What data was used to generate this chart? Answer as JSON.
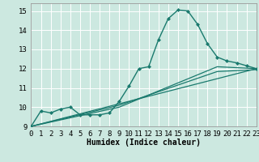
{
  "xlabel": "Humidex (Indice chaleur)",
  "xlim": [
    0,
    23
  ],
  "ylim": [
    9.0,
    15.4
  ],
  "yticks": [
    9,
    10,
    11,
    12,
    13,
    14,
    15
  ],
  "xticks": [
    0,
    1,
    2,
    3,
    4,
    5,
    6,
    7,
    8,
    9,
    10,
    11,
    12,
    13,
    14,
    15,
    16,
    17,
    18,
    19,
    20,
    21,
    22,
    23
  ],
  "bg_color": "#cce8e0",
  "grid_color": "#ffffff",
  "line_color": "#1a7a6e",
  "curves": [
    {
      "x": [
        0,
        1,
        2,
        3,
        4,
        5,
        6,
        7,
        8,
        9,
        10,
        11,
        12,
        13,
        14,
        15,
        16,
        17,
        18,
        19,
        20,
        21,
        22,
        23
      ],
      "y": [
        9.0,
        9.8,
        9.7,
        9.9,
        10.0,
        9.6,
        9.6,
        9.6,
        9.7,
        10.3,
        11.1,
        12.0,
        12.1,
        13.5,
        14.6,
        15.05,
        15.0,
        14.3,
        13.3,
        12.6,
        12.4,
        12.3,
        12.15,
        12.0
      ],
      "marker": "D",
      "markersize": 2.0,
      "linewidth": 1.0,
      "linestyle": "-"
    },
    {
      "x": [
        0,
        23
      ],
      "y": [
        9.0,
        12.0
      ],
      "marker": null,
      "markersize": 0,
      "linewidth": 0.9,
      "linestyle": "-"
    },
    {
      "x": [
        0,
        9,
        19,
        23
      ],
      "y": [
        9.0,
        10.0,
        12.1,
        12.0
      ],
      "marker": null,
      "markersize": 0,
      "linewidth": 0.9,
      "linestyle": "-"
    },
    {
      "x": [
        0,
        9,
        19,
        23
      ],
      "y": [
        9.0,
        10.1,
        11.85,
        11.95
      ],
      "marker": null,
      "markersize": 0,
      "linewidth": 0.9,
      "linestyle": "-"
    }
  ],
  "font_family": "monospace",
  "xlabel_fontsize": 7,
  "tick_fontsize": 6.5
}
